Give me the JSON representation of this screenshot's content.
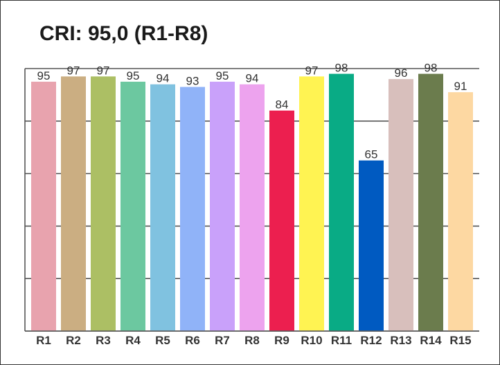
{
  "chart_data": {
    "type": "bar",
    "title": "CRI: 95,0 (R1-R8)",
    "categories": [
      "R1",
      "R2",
      "R3",
      "R4",
      "R5",
      "R6",
      "R7",
      "R8",
      "R9",
      "R10",
      "R11",
      "R12",
      "R13",
      "R14",
      "R15"
    ],
    "values": [
      95,
      97,
      97,
      95,
      94,
      93,
      95,
      94,
      84,
      97,
      98,
      65,
      96,
      98,
      91
    ],
    "colors": [
      "#E8A3AE",
      "#CBAE82",
      "#ACBF64",
      "#6CC8A0",
      "#80C2E0",
      "#90B3F8",
      "#C9A1FA",
      "#EDA3EE",
      "#EC1F4F",
      "#FFF352",
      "#09AB85",
      "#005AC1",
      "#D8BFBC",
      "#6B7C4D",
      "#FDD8A2"
    ],
    "ylim": [
      0,
      100
    ],
    "grid": true,
    "xlabel": "",
    "ylabel": ""
  }
}
